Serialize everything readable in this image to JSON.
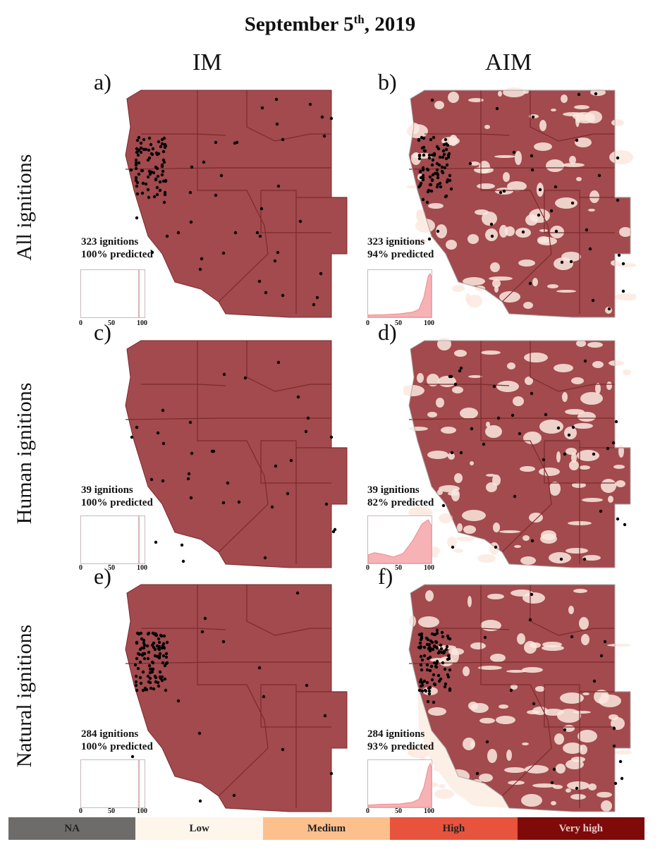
{
  "title": {
    "main": "September 5",
    "sup": "th",
    "year": ", 2019"
  },
  "columns": [
    "IM",
    "AIM"
  ],
  "rows": [
    "All ignitions",
    "Human ignitions",
    "Natural ignitions"
  ],
  "panels": [
    {
      "label": "a)",
      "model": "IM",
      "ignition_type": "All ignitions",
      "ignitions": "323 ignitions",
      "predicted": "100% predicted"
    },
    {
      "label": "b)",
      "model": "AIM",
      "ignition_type": "All ignitions",
      "ignitions": "323 ignitions",
      "predicted": "94% predicted"
    },
    {
      "label": "c)",
      "model": "IM",
      "ignition_type": "Human ignitions",
      "ignitions": "39 ignitions",
      "predicted": "100% predicted"
    },
    {
      "label": "d)",
      "model": "AIM",
      "ignition_type": "Human ignitions",
      "ignitions": "39 ignitions",
      "predicted": "82% predicted"
    },
    {
      "label": "e)",
      "model": "IM",
      "ignition_type": "Natural ignitions",
      "ignitions": "284 ignitions",
      "predicted": "100% predicted"
    },
    {
      "label": "f)",
      "model": "AIM",
      "ignition_type": "Natural ignitions",
      "ignitions": "284 ignitions",
      "predicted": "93% predicted"
    }
  ],
  "hist_ticks": [
    "0",
    "50",
    "100"
  ],
  "legend": [
    {
      "label": "NA",
      "color": "#6e6b6b"
    },
    {
      "label": "Low",
      "color": "#fef5eb"
    },
    {
      "label": "Medium",
      "color": "#fdc08d"
    },
    {
      "label": "High",
      "color": "#e8533d"
    },
    {
      "label": "Very high",
      "color": "#7f0a0a"
    }
  ],
  "colors": {
    "map_fill": "#a24a4d",
    "map_border": "#7c2a2d",
    "density_fill": "#f7b2b5",
    "density_line": "#e98c90",
    "ignition_point": "#000000"
  },
  "chart_data": [
    {
      "type": "heatmap",
      "panel": "a)",
      "model": "IM",
      "series": "All ignitions",
      "ignitions": 323,
      "predicted_pct": 100,
      "density": {
        "type": "area",
        "x": [
          0,
          50,
          90,
          92,
          100
        ],
        "y": [
          0,
          0,
          0,
          1,
          0
        ],
        "xlim": [
          0,
          100
        ]
      }
    },
    {
      "type": "heatmap",
      "panel": "b)",
      "model": "AIM",
      "series": "All ignitions",
      "ignitions": 323,
      "predicted_pct": 94,
      "density": {
        "type": "area",
        "x": [
          0,
          25,
          50,
          70,
          80,
          88,
          95,
          98,
          100
        ],
        "y": [
          0.02,
          0.03,
          0.05,
          0.09,
          0.15,
          0.45,
          0.95,
          1.0,
          0.9
        ],
        "xlim": [
          0,
          100
        ]
      }
    },
    {
      "type": "heatmap",
      "panel": "c)",
      "model": "IM",
      "series": "Human ignitions",
      "ignitions": 39,
      "predicted_pct": 100,
      "density": {
        "type": "area",
        "x": [
          0,
          50,
          90,
          92,
          100
        ],
        "y": [
          0,
          0,
          0,
          1,
          0
        ],
        "xlim": [
          0,
          100
        ]
      }
    },
    {
      "type": "heatmap",
      "panel": "d)",
      "model": "AIM",
      "series": "Human ignitions",
      "ignitions": 39,
      "predicted_pct": 82,
      "density": {
        "type": "area",
        "x": [
          0,
          10,
          25,
          40,
          55,
          70,
          85,
          95,
          100
        ],
        "y": [
          0.17,
          0.22,
          0.18,
          0.12,
          0.2,
          0.5,
          0.9,
          1.0,
          0.85
        ],
        "xlim": [
          0,
          100
        ]
      }
    },
    {
      "type": "heatmap",
      "panel": "e)",
      "model": "IM",
      "series": "Natural ignitions",
      "ignitions": 284,
      "predicted_pct": 100,
      "density": {
        "type": "area",
        "x": [
          0,
          50,
          90,
          92,
          100
        ],
        "y": [
          0,
          0,
          0,
          1,
          0
        ],
        "xlim": [
          0,
          100
        ]
      }
    },
    {
      "type": "heatmap",
      "panel": "f)",
      "model": "AIM",
      "series": "Natural ignitions",
      "ignitions": 284,
      "predicted_pct": 93,
      "density": {
        "type": "area",
        "x": [
          0,
          20,
          50,
          70,
          80,
          88,
          95,
          98,
          100
        ],
        "y": [
          0.02,
          0.04,
          0.05,
          0.09,
          0.16,
          0.45,
          0.92,
          1.0,
          0.9
        ],
        "xlim": [
          0,
          100
        ]
      }
    }
  ],
  "legend_categories": [
    "NA",
    "Low",
    "Medium",
    "High",
    "Very high"
  ]
}
